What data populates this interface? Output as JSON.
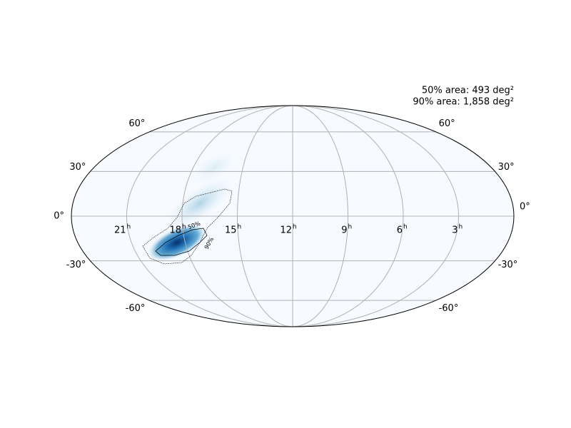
{
  "map": {
    "projection": "mollweide",
    "grid": true,
    "annotations": [
      "50% area: 493 deg²",
      "90% area: 1,858 deg²"
    ],
    "dec_ticks": [
      {
        "value": 60,
        "label": "60°"
      },
      {
        "value": 30,
        "label": "30°"
      },
      {
        "value": 0,
        "label": "0°"
      },
      {
        "value": -30,
        "label": "-30°"
      },
      {
        "value": -60,
        "label": "-60°"
      }
    ],
    "ra_ticks": [
      {
        "value": 21,
        "label": "21",
        "suffix": "h"
      },
      {
        "value": 18,
        "label": "18",
        "suffix": "h"
      },
      {
        "value": 15,
        "label": "15",
        "suffix": "h"
      },
      {
        "value": 12,
        "label": "12",
        "suffix": "h"
      },
      {
        "value": 9,
        "label": "9",
        "suffix": "h"
      },
      {
        "value": 6,
        "label": "6",
        "suffix": "h"
      },
      {
        "value": 3,
        "label": "3",
        "suffix": "h"
      }
    ],
    "contours": [
      {
        "level": 50,
        "label": "50%"
      },
      {
        "level": 90,
        "label": "90%"
      }
    ]
  }
}
